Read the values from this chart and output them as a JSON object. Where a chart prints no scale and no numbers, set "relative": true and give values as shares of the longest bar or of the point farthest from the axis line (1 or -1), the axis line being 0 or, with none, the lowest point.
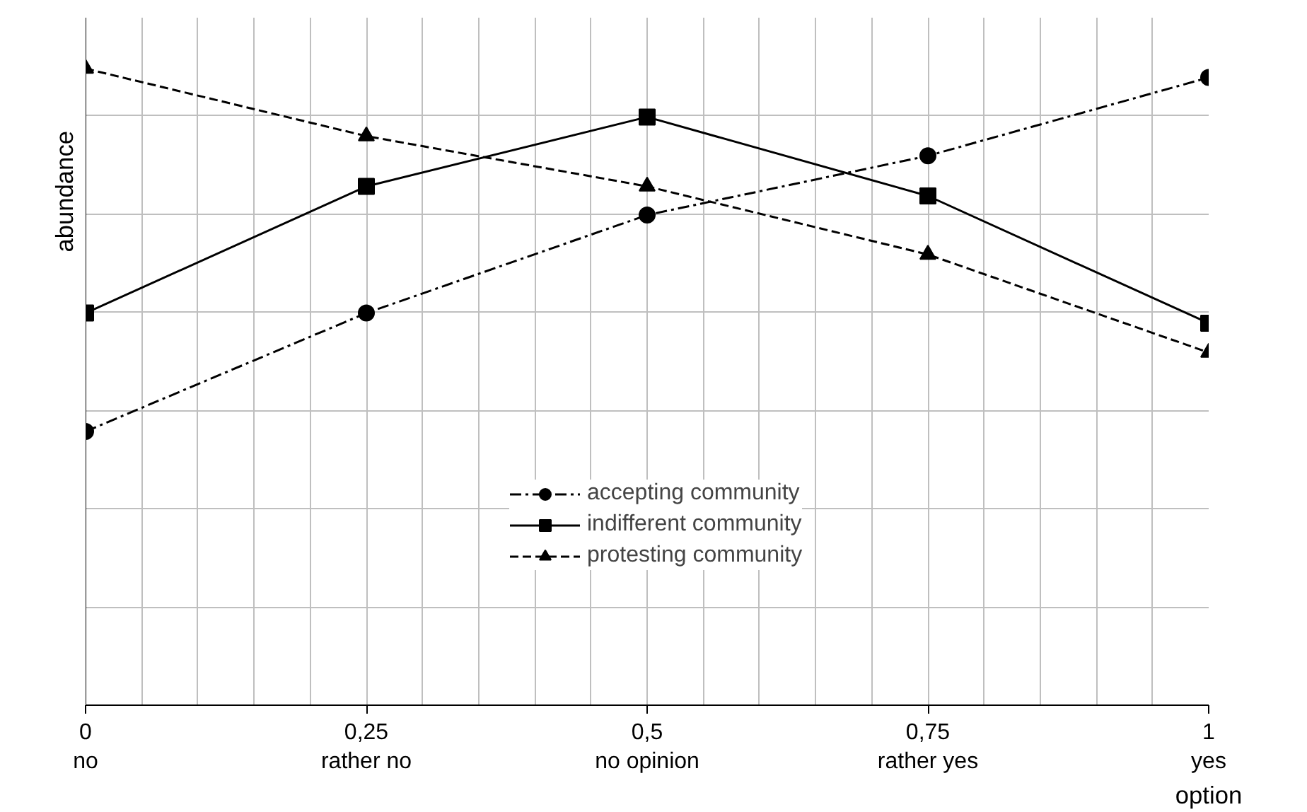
{
  "chart_data": {
    "type": "line",
    "relative": true,
    "xlabel": "option",
    "ylabel": "abundance",
    "x": [
      0,
      0.25,
      0.5,
      0.75,
      1
    ],
    "xlim": [
      0,
      1
    ],
    "xticks": [
      {
        "value": 0,
        "label": "0\nno"
      },
      {
        "value": 0.25,
        "label": "0,25\nrather no"
      },
      {
        "value": 0.5,
        "label": "0,5\nno opinion"
      },
      {
        "value": 0.75,
        "label": "0,75\nrather yes"
      },
      {
        "value": 1,
        "label": "1\nyes"
      }
    ],
    "grid": true,
    "legend": "bottom",
    "series": [
      {
        "name": "accepting community",
        "color": "#000000",
        "marker": "circle",
        "line_style": "dashdot",
        "values": [
          0.43,
          0.616,
          0.77,
          0.863,
          0.986
        ]
      },
      {
        "name": "indifferent community",
        "color": "#000000",
        "marker": "square",
        "line_style": "solid",
        "values": [
          0.616,
          0.815,
          0.924,
          0.8,
          0.6
        ]
      },
      {
        "name": "protesting community",
        "color": "#000000",
        "marker": "triangle",
        "line_style": "dashed",
        "values": [
          1.0,
          0.894,
          0.815,
          0.708,
          0.554
        ]
      }
    ]
  }
}
